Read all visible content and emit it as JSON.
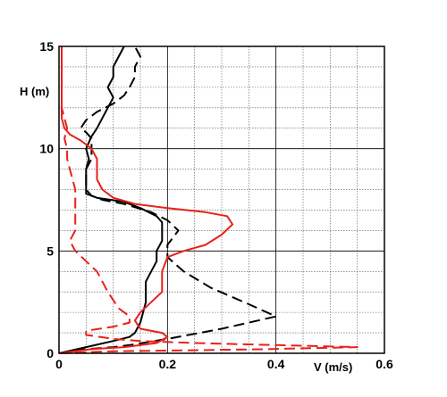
{
  "chart_data": {
    "type": "line",
    "xlabel": "V (m/s)",
    "ylabel": "H (m)",
    "xlim": [
      0,
      0.6
    ],
    "ylim": [
      0,
      15
    ],
    "x_ticks": [
      "0",
      "0.2",
      "0.4",
      "0.6"
    ],
    "y_ticks": [
      "0",
      "5",
      "10",
      "15"
    ],
    "grid": true,
    "series": [
      {
        "color": "#000000",
        "dash": "solid",
        "points": [
          [
            0.0,
            0.0
          ],
          [
            0.05,
            0.3
          ],
          [
            0.1,
            0.6
          ],
          [
            0.13,
            0.8
          ],
          [
            0.14,
            1.0
          ],
          [
            0.15,
            1.5
          ],
          [
            0.16,
            2.5
          ],
          [
            0.16,
            3.5
          ],
          [
            0.17,
            4.0
          ],
          [
            0.18,
            4.5
          ],
          [
            0.18,
            5.0
          ],
          [
            0.19,
            5.5
          ],
          [
            0.19,
            6.0
          ],
          [
            0.19,
            6.4
          ],
          [
            0.18,
            6.7
          ],
          [
            0.15,
            7.1
          ],
          [
            0.12,
            7.4
          ],
          [
            0.07,
            7.6
          ],
          [
            0.05,
            7.8
          ],
          [
            0.05,
            8.5
          ],
          [
            0.05,
            9.0
          ],
          [
            0.055,
            9.5
          ],
          [
            0.05,
            10.0
          ],
          [
            0.06,
            10.6
          ],
          [
            0.07,
            11.0
          ],
          [
            0.08,
            11.5
          ],
          [
            0.09,
            12.0
          ],
          [
            0.1,
            12.5
          ],
          [
            0.09,
            13.0
          ],
          [
            0.1,
            13.5
          ],
          [
            0.1,
            14.0
          ],
          [
            0.11,
            14.5
          ],
          [
            0.12,
            15.0
          ]
        ]
      },
      {
        "color": "#000000",
        "dash": "dashed",
        "points": [
          [
            0.0,
            0.0
          ],
          [
            0.05,
            0.2
          ],
          [
            0.1,
            0.3
          ],
          [
            0.13,
            0.4
          ],
          [
            0.2,
            0.7
          ],
          [
            0.3,
            1.2
          ],
          [
            0.4,
            1.8
          ],
          [
            0.35,
            2.4
          ],
          [
            0.28,
            3.2
          ],
          [
            0.23,
            4.0
          ],
          [
            0.2,
            4.7
          ],
          [
            0.2,
            5.3
          ],
          [
            0.22,
            6.0
          ],
          [
            0.2,
            6.5
          ],
          [
            0.17,
            6.9
          ],
          [
            0.12,
            7.3
          ],
          [
            0.08,
            7.5
          ],
          [
            0.06,
            7.7
          ],
          [
            0.05,
            8.0
          ],
          [
            0.05,
            8.5
          ],
          [
            0.05,
            9.0
          ],
          [
            0.06,
            9.5
          ],
          [
            0.06,
            10.0
          ],
          [
            0.06,
            10.5
          ],
          [
            0.05,
            10.8
          ],
          [
            0.04,
            11.0
          ],
          [
            0.05,
            11.4
          ],
          [
            0.07,
            11.8
          ],
          [
            0.1,
            12.2
          ],
          [
            0.12,
            12.6
          ],
          [
            0.13,
            13.0
          ],
          [
            0.14,
            13.5
          ],
          [
            0.14,
            14.0
          ],
          [
            0.15,
            14.5
          ],
          [
            0.14,
            15.0
          ]
        ]
      },
      {
        "color": "#e8201a",
        "dash": "solid",
        "points": [
          [
            0.0,
            0.0
          ],
          [
            0.06,
            0.2
          ],
          [
            0.12,
            0.3
          ],
          [
            0.18,
            0.5
          ],
          [
            0.2,
            0.8
          ],
          [
            0.19,
            1.0
          ],
          [
            0.15,
            1.2
          ],
          [
            0.14,
            1.6
          ],
          [
            0.15,
            2.0
          ],
          [
            0.17,
            2.5
          ],
          [
            0.19,
            3.0
          ],
          [
            0.19,
            4.0
          ],
          [
            0.2,
            4.7
          ],
          [
            0.23,
            5.0
          ],
          [
            0.27,
            5.3
          ],
          [
            0.3,
            5.8
          ],
          [
            0.32,
            6.3
          ],
          [
            0.31,
            6.7
          ],
          [
            0.27,
            6.9
          ],
          [
            0.2,
            7.1
          ],
          [
            0.14,
            7.3
          ],
          [
            0.1,
            7.6
          ],
          [
            0.08,
            8.0
          ],
          [
            0.07,
            8.5
          ],
          [
            0.07,
            9.0
          ],
          [
            0.07,
            9.5
          ],
          [
            0.06,
            10.0
          ],
          [
            0.04,
            10.4
          ],
          [
            0.02,
            10.7
          ],
          [
            0.01,
            11.0
          ],
          [
            0.005,
            11.5
          ],
          [
            0.005,
            12.0
          ],
          [
            0.005,
            12.5
          ],
          [
            0.005,
            13.0
          ],
          [
            0.005,
            13.5
          ],
          [
            0.005,
            14.0
          ],
          [
            0.005,
            14.5
          ],
          [
            0.005,
            15.0
          ]
        ]
      },
      {
        "color": "#e8201a",
        "dash": "dashed",
        "points": [
          [
            0.0,
            0.0
          ],
          [
            0.1,
            0.1
          ],
          [
            0.25,
            0.15
          ],
          [
            0.38,
            0.2
          ],
          [
            0.55,
            0.3
          ],
          [
            0.4,
            0.4
          ],
          [
            0.25,
            0.5
          ],
          [
            0.15,
            0.6
          ],
          [
            0.1,
            0.7
          ],
          [
            0.05,
            0.9
          ],
          [
            0.05,
            1.1
          ],
          [
            0.1,
            1.3
          ],
          [
            0.13,
            1.5
          ],
          [
            0.13,
            1.8
          ],
          [
            0.11,
            2.2
          ],
          [
            0.1,
            2.6
          ],
          [
            0.09,
            3.0
          ],
          [
            0.08,
            3.5
          ],
          [
            0.07,
            4.0
          ],
          [
            0.05,
            4.5
          ],
          [
            0.03,
            5.0
          ],
          [
            0.02,
            5.5
          ],
          [
            0.03,
            6.0
          ],
          [
            0.03,
            6.5
          ],
          [
            0.03,
            7.0
          ],
          [
            0.03,
            7.5
          ],
          [
            0.03,
            8.0
          ],
          [
            0.025,
            8.5
          ],
          [
            0.02,
            9.0
          ],
          [
            0.015,
            9.5
          ],
          [
            0.015,
            10.0
          ],
          [
            0.01,
            10.5
          ],
          [
            0.015,
            11.0
          ],
          [
            0.01,
            11.5
          ],
          [
            0.005,
            12.0
          ],
          [
            0.005,
            12.5
          ],
          [
            0.005,
            13.0
          ],
          [
            0.005,
            13.5
          ],
          [
            0.005,
            14.0
          ],
          [
            0.005,
            14.5
          ],
          [
            0.005,
            15.0
          ]
        ]
      }
    ]
  }
}
